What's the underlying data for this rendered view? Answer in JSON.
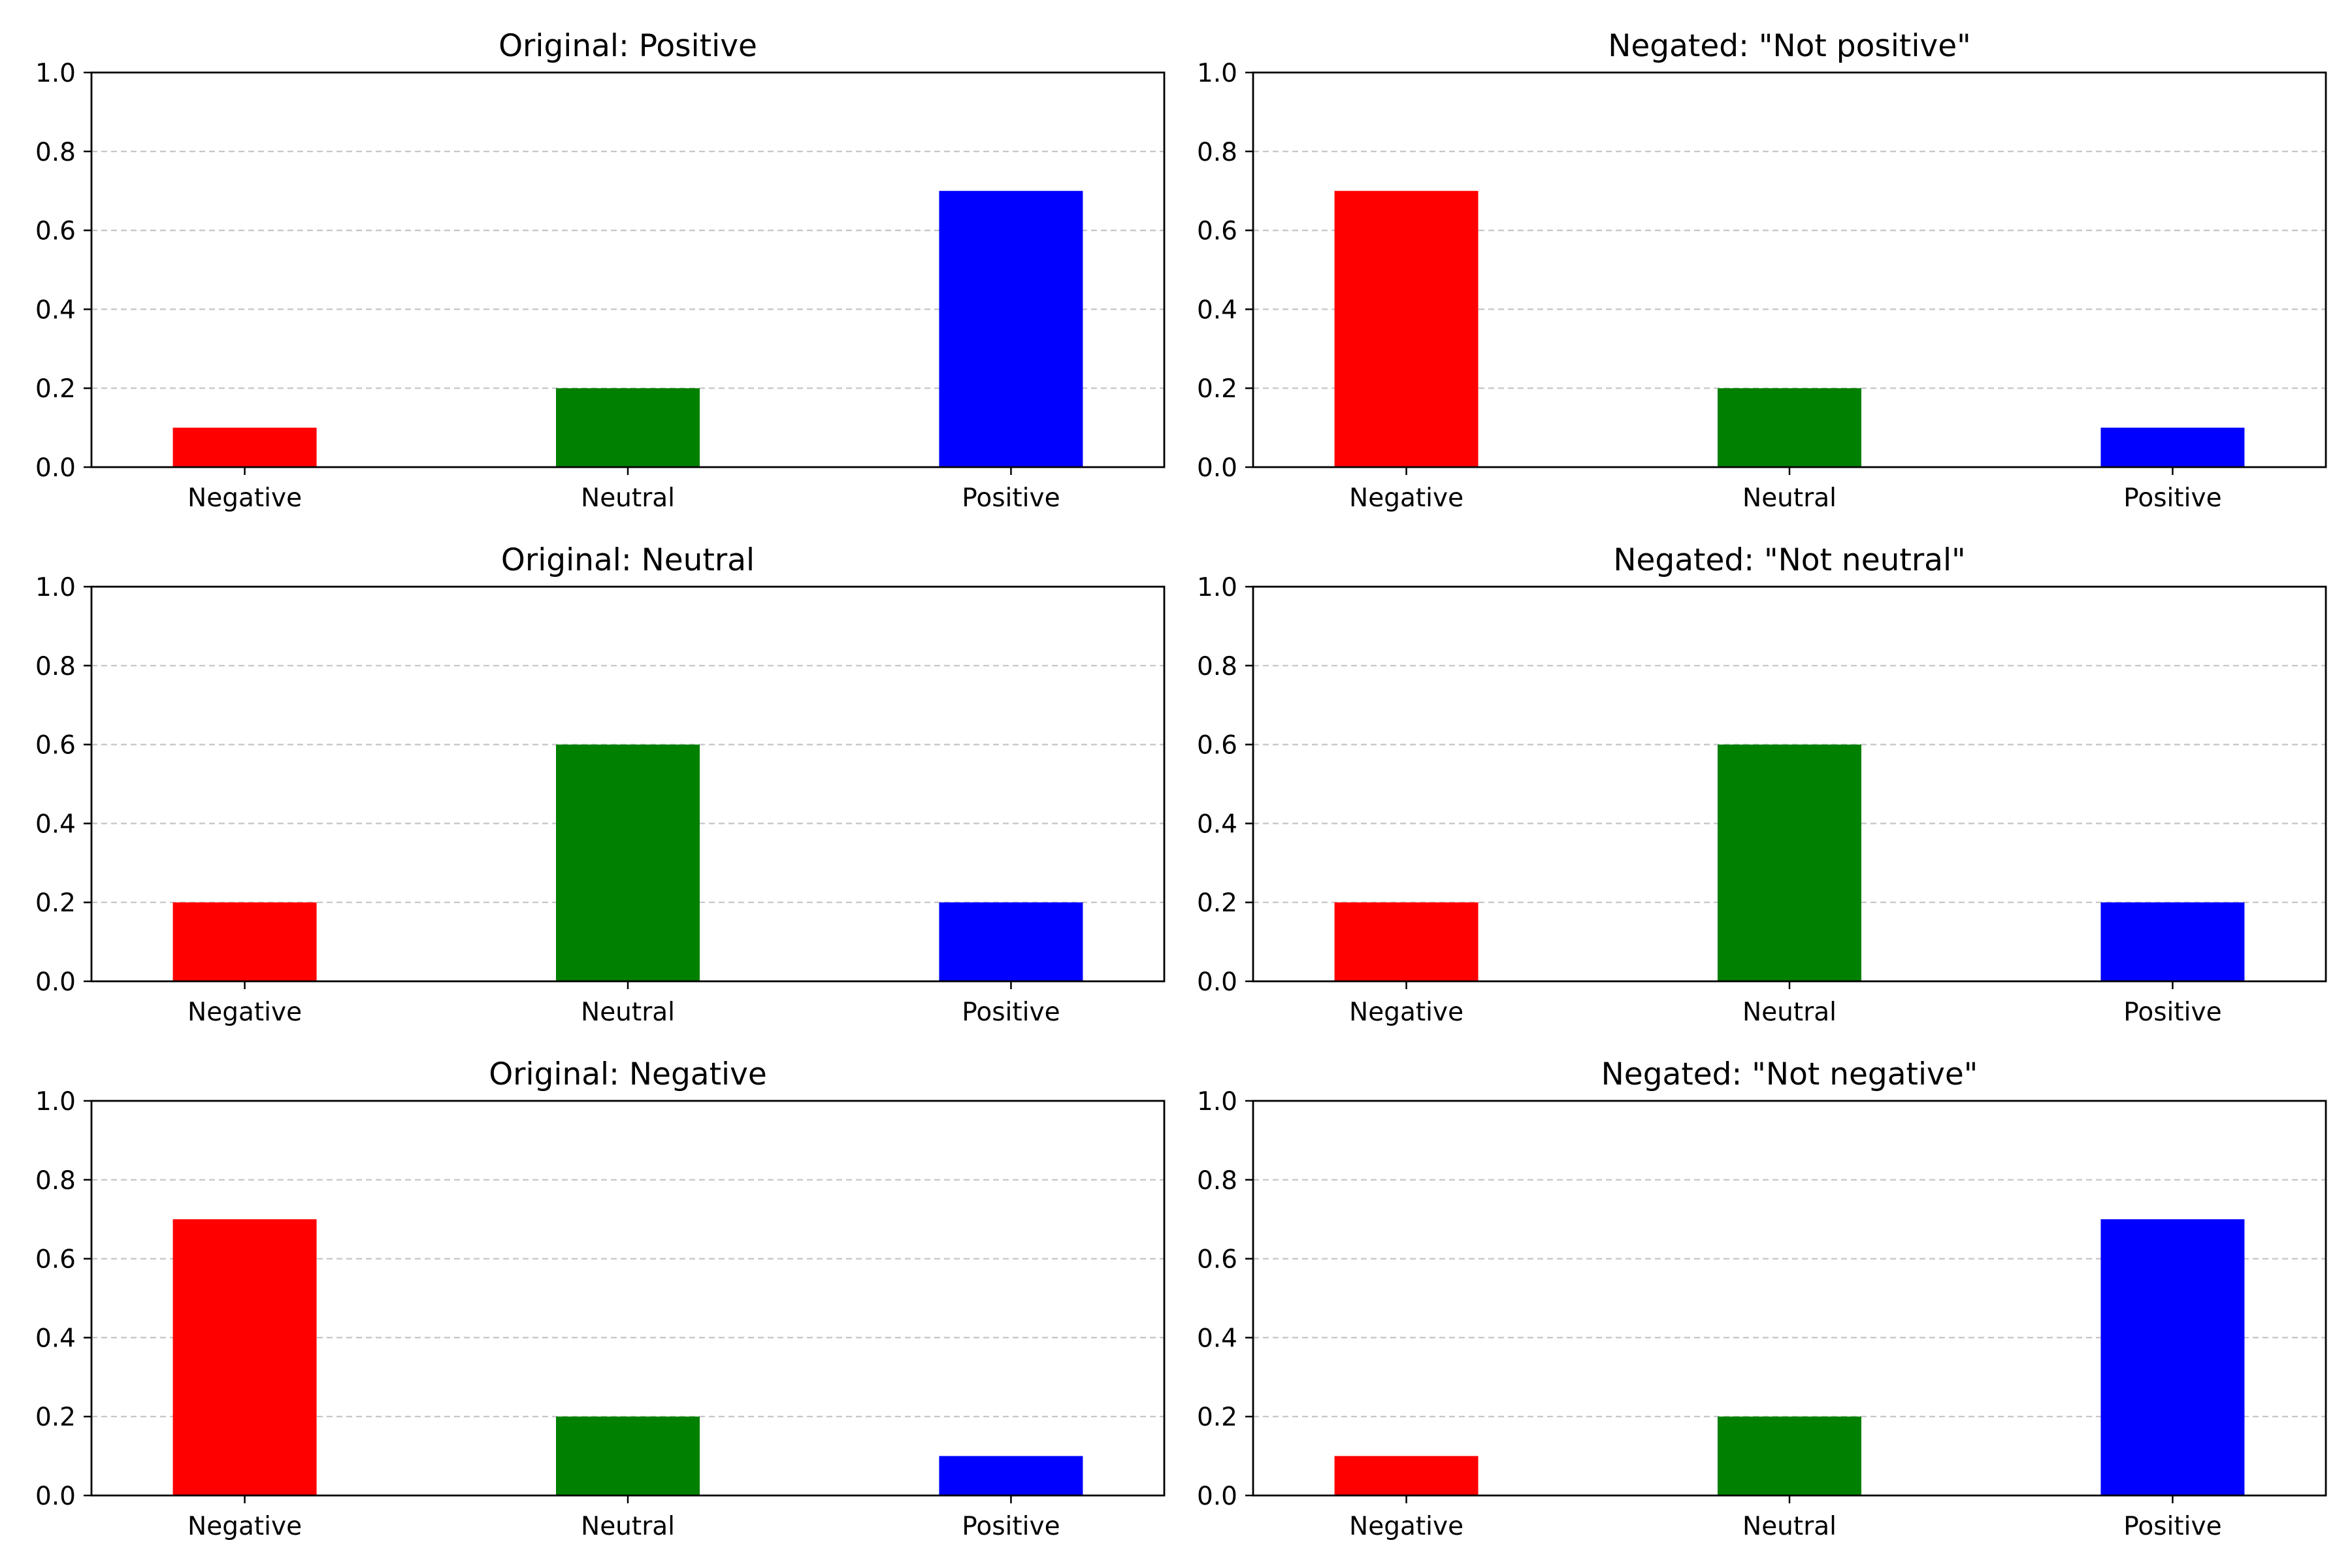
{
  "chart_data": [
    {
      "type": "bar",
      "title": "Original: Positive",
      "categories": [
        "Negative",
        "Neutral",
        "Positive"
      ],
      "values": [
        0.1,
        0.2,
        0.7
      ],
      "colors": [
        "#ff0000",
        "#008000",
        "#0000ff"
      ],
      "ylim": [
        0,
        1.0
      ],
      "yticks": [
        "0.0",
        "0.2",
        "0.4",
        "0.6",
        "0.8",
        "1.0"
      ],
      "grid": "horizontal-dashed",
      "xlabel": "",
      "ylabel": ""
    },
    {
      "type": "bar",
      "title": "Negated: \"Not positive\"",
      "categories": [
        "Negative",
        "Neutral",
        "Positive"
      ],
      "values": [
        0.7,
        0.2,
        0.1
      ],
      "colors": [
        "#ff0000",
        "#008000",
        "#0000ff"
      ],
      "ylim": [
        0,
        1.0
      ],
      "yticks": [
        "0.0",
        "0.2",
        "0.4",
        "0.6",
        "0.8",
        "1.0"
      ],
      "grid": "horizontal-dashed",
      "xlabel": "",
      "ylabel": ""
    },
    {
      "type": "bar",
      "title": "Original: Neutral",
      "categories": [
        "Negative",
        "Neutral",
        "Positive"
      ],
      "values": [
        0.2,
        0.6,
        0.2
      ],
      "colors": [
        "#ff0000",
        "#008000",
        "#0000ff"
      ],
      "ylim": [
        0,
        1.0
      ],
      "yticks": [
        "0.0",
        "0.2",
        "0.4",
        "0.6",
        "0.8",
        "1.0"
      ],
      "grid": "horizontal-dashed",
      "xlabel": "",
      "ylabel": ""
    },
    {
      "type": "bar",
      "title": "Negated: \"Not neutral\"",
      "categories": [
        "Negative",
        "Neutral",
        "Positive"
      ],
      "values": [
        0.2,
        0.6,
        0.2
      ],
      "colors": [
        "#ff0000",
        "#008000",
        "#0000ff"
      ],
      "ylim": [
        0,
        1.0
      ],
      "yticks": [
        "0.0",
        "0.2",
        "0.4",
        "0.6",
        "0.8",
        "1.0"
      ],
      "grid": "horizontal-dashed",
      "xlabel": "",
      "ylabel": ""
    },
    {
      "type": "bar",
      "title": "Original: Negative",
      "categories": [
        "Negative",
        "Neutral",
        "Positive"
      ],
      "values": [
        0.7,
        0.2,
        0.1
      ],
      "colors": [
        "#ff0000",
        "#008000",
        "#0000ff"
      ],
      "ylim": [
        0,
        1.0
      ],
      "yticks": [
        "0.0",
        "0.2",
        "0.4",
        "0.6",
        "0.8",
        "1.0"
      ],
      "grid": "horizontal-dashed",
      "xlabel": "",
      "ylabel": ""
    },
    {
      "type": "bar",
      "title": "Negated: \"Not negative\"",
      "categories": [
        "Negative",
        "Neutral",
        "Positive"
      ],
      "values": [
        0.1,
        0.2,
        0.7
      ],
      "colors": [
        "#ff0000",
        "#008000",
        "#0000ff"
      ],
      "ylim": [
        0,
        1.0
      ],
      "yticks": [
        "0.0",
        "0.2",
        "0.4",
        "0.6",
        "0.8",
        "1.0"
      ],
      "grid": "horizontal-dashed",
      "xlabel": "",
      "ylabel": ""
    }
  ]
}
